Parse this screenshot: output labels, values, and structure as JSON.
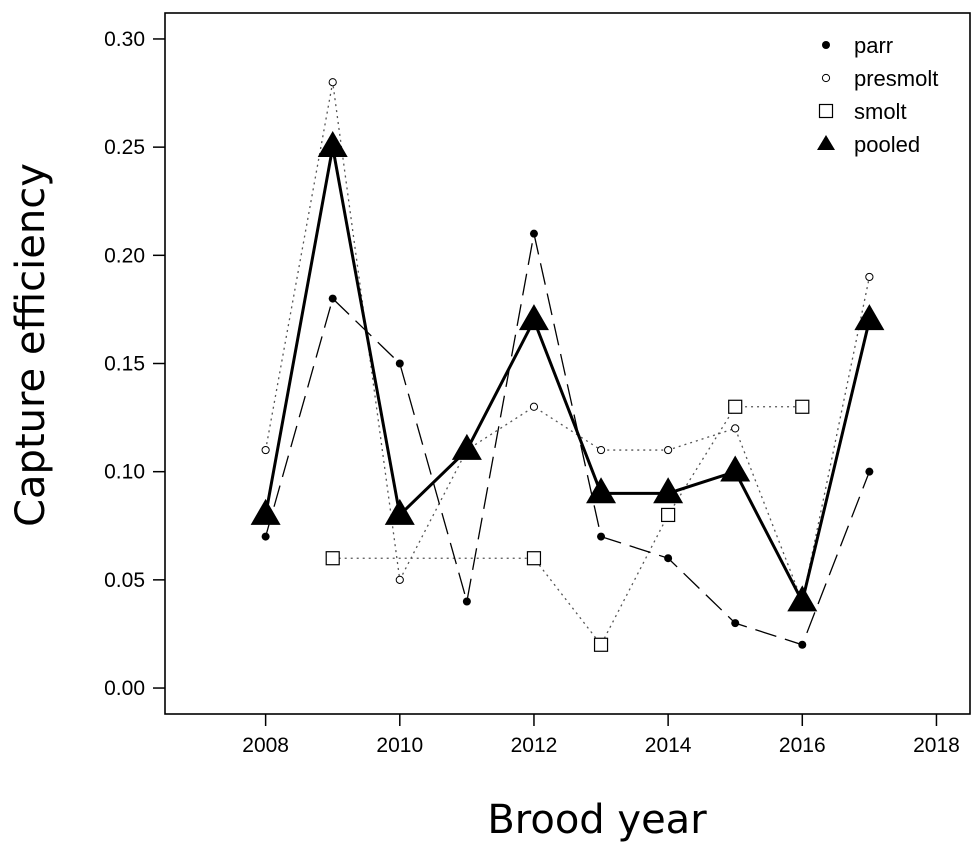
{
  "chart_data": {
    "type": "line",
    "xlabel": "Brood year",
    "ylabel": "Capture efficiency",
    "xlim": [
      2006.5,
      2018.5
    ],
    "ylim": [
      -0.012,
      0.312
    ],
    "xticks": [
      2008,
      2010,
      2012,
      2014,
      2016,
      2018
    ],
    "yticks": [
      "0.00",
      "0.05",
      "0.10",
      "0.15",
      "0.20",
      "0.25",
      "0.30"
    ],
    "grid": false,
    "legend_position": "top-right",
    "series": [
      {
        "name": "parr",
        "marker": "filled-circle",
        "line": "dashed",
        "points": [
          [
            2008,
            0.07
          ],
          [
            2009,
            0.18
          ],
          [
            2010,
            0.15
          ],
          [
            2011,
            0.04
          ],
          [
            2012,
            0.21
          ],
          [
            2013,
            0.07
          ],
          [
            2014,
            0.06
          ],
          [
            2015,
            0.03
          ],
          [
            2016,
            0.02
          ],
          [
            2017,
            0.1
          ]
        ]
      },
      {
        "name": "presmolt",
        "marker": "open-circle",
        "line": "dotted",
        "points": [
          [
            2008,
            0.11
          ],
          [
            2009,
            0.28
          ],
          [
            2010,
            0.05
          ],
          [
            2011,
            0.11
          ],
          [
            2012,
            0.13
          ],
          [
            2013,
            0.11
          ],
          [
            2014,
            0.11
          ],
          [
            2015,
            0.12
          ],
          [
            2016,
            0.04
          ],
          [
            2017,
            0.19
          ]
        ]
      },
      {
        "name": "smolt",
        "marker": "open-square",
        "line": "dotted",
        "points": [
          [
            2009,
            0.06
          ],
          [
            2012,
            0.06
          ],
          [
            2013,
            0.02
          ],
          [
            2014,
            0.08
          ],
          [
            2015,
            0.13
          ],
          [
            2016,
            0.13
          ]
        ]
      },
      {
        "name": "pooled",
        "marker": "filled-triangle",
        "line": "solid-thick",
        "points": [
          [
            2008,
            0.08
          ],
          [
            2009,
            0.25
          ],
          [
            2010,
            0.08
          ],
          [
            2011,
            0.11
          ],
          [
            2012,
            0.17
          ],
          [
            2013,
            0.09
          ],
          [
            2014,
            0.09
          ],
          [
            2015,
            0.1
          ],
          [
            2016,
            0.04
          ],
          [
            2017,
            0.17
          ]
        ]
      }
    ]
  }
}
